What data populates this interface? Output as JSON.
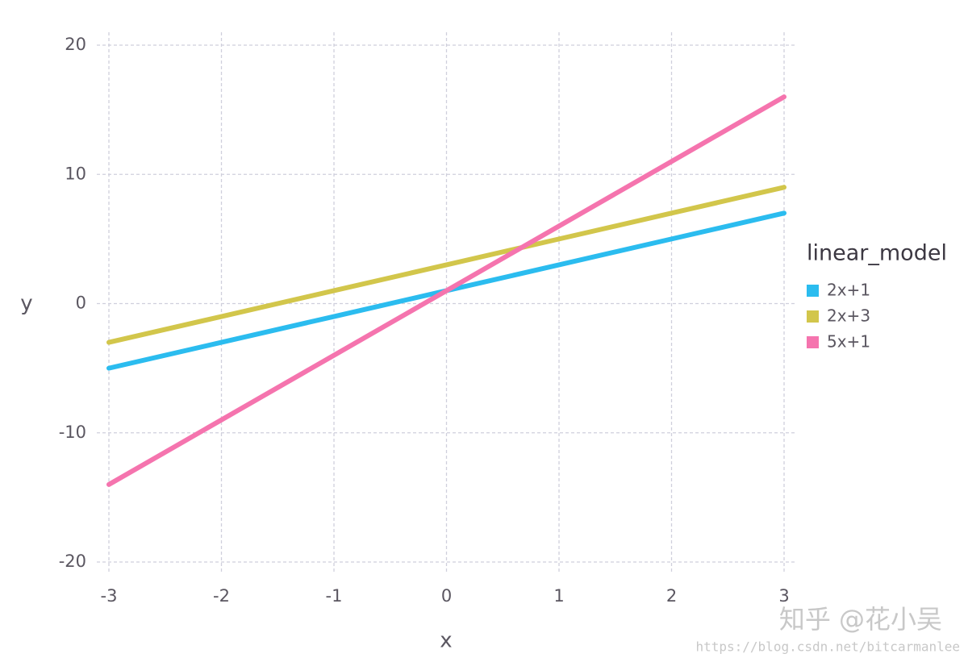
{
  "chart_data": {
    "type": "line",
    "x_label": "x",
    "y_label": "y",
    "x": [
      -3,
      -2,
      -1,
      0,
      1,
      2,
      3
    ],
    "series": [
      {
        "name": "2x+1",
        "color": "#2bbcef",
        "values": [
          -5,
          -3,
          -1,
          1,
          3,
          5,
          7
        ]
      },
      {
        "name": "2x+3",
        "color": "#d2c64b",
        "values": [
          -3,
          -1,
          1,
          3,
          5,
          7,
          9
        ]
      },
      {
        "name": "5x+1",
        "color": "#f574ae",
        "values": [
          -14,
          -9,
          -4,
          1,
          6,
          11,
          16
        ]
      }
    ],
    "legend_title": "linear_model",
    "legend": "right",
    "xlim": [
      -3,
      3
    ],
    "xticks": [
      -3,
      -2,
      -1,
      0,
      1,
      2,
      3
    ],
    "ylim": [
      -20,
      20
    ],
    "yticks": [
      -20,
      -10,
      0,
      10,
      20
    ],
    "grid": true,
    "watermark": "知乎 @花小吴",
    "source_url": "https://blog.csdn.net/bitcarmanlee"
  }
}
